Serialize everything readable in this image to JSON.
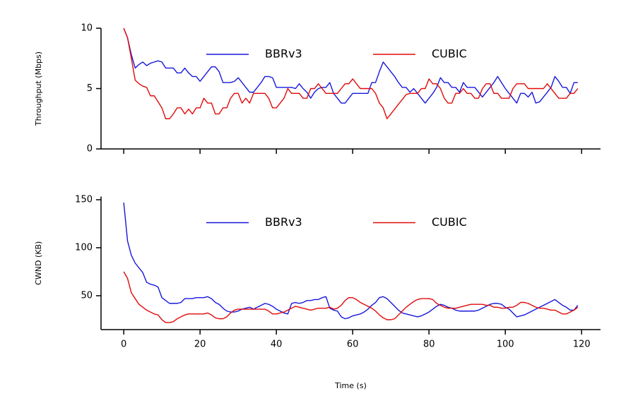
{
  "chart_data": [
    {
      "type": "line",
      "ylabel": "Throughput (Mbps)",
      "legend": "upper center",
      "xlim": [
        -5.95,
        124.95
      ],
      "xticks": [
        0,
        20,
        40,
        60,
        80,
        100,
        120
      ],
      "ylim": [
        0,
        10
      ],
      "yticks": [
        0,
        5,
        10
      ],
      "x": [
        0,
        1,
        2,
        3,
        4,
        5,
        6,
        7,
        8,
        9,
        10,
        11,
        12,
        13,
        14,
        15,
        16,
        17,
        18,
        19,
        20,
        21,
        22,
        23,
        24,
        25,
        26,
        27,
        28,
        29,
        30,
        31,
        32,
        33,
        34,
        35,
        36,
        37,
        38,
        39,
        40,
        41,
        42,
        43,
        44,
        45,
        46,
        47,
        48,
        49,
        50,
        51,
        52,
        53,
        54,
        55,
        56,
        57,
        58,
        59,
        60,
        61,
        62,
        63,
        64,
        65,
        66,
        67,
        68,
        69,
        70,
        71,
        72,
        73,
        74,
        75,
        76,
        77,
        78,
        79,
        80,
        81,
        82,
        83,
        84,
        85,
        86,
        87,
        88,
        89,
        90,
        91,
        92,
        93,
        94,
        95,
        96,
        97,
        98,
        99,
        100,
        101,
        102,
        103,
        104,
        105,
        106,
        107,
        108,
        109,
        110,
        111,
        112,
        113,
        114,
        115,
        116,
        117,
        118,
        119
      ],
      "series": [
        {
          "name": "BBRv3",
          "color": "#1717dd",
          "values": [
            10,
            9.2,
            7.8,
            6.7,
            7.0,
            7.2,
            6.9,
            7.1,
            7.2,
            7.3,
            7.2,
            6.7,
            6.7,
            6.7,
            6.3,
            6.3,
            6.7,
            6.3,
            6.0,
            6.0,
            5.6,
            6.0,
            6.4,
            6.8,
            6.8,
            6.4,
            5.5,
            5.5,
            5.5,
            5.6,
            5.9,
            5.5,
            5.1,
            4.7,
            4.7,
            5.1,
            5.5,
            6.0,
            6.0,
            5.9,
            5.1,
            5.1,
            5.1,
            5.1,
            5.1,
            5.0,
            5.4,
            5.0,
            4.7,
            4.2,
            4.7,
            5.0,
            5.1,
            5.1,
            5.5,
            4.6,
            4.2,
            3.8,
            3.8,
            4.2,
            4.6,
            4.6,
            4.6,
            4.6,
            4.6,
            5.5,
            5.5,
            6.4,
            7.2,
            6.8,
            6.4,
            6.0,
            5.5,
            5.1,
            5.1,
            4.7,
            5.0,
            4.6,
            4.2,
            3.8,
            4.2,
            4.6,
            5.1,
            5.9,
            5.5,
            5.5,
            5.1,
            5.1,
            4.7,
            5.5,
            5.1,
            5.1,
            5.1,
            4.7,
            4.3,
            4.7,
            5.1,
            5.5,
            6.0,
            5.5,
            5.0,
            4.6,
            4.2,
            3.8,
            4.6,
            4.6,
            4.3,
            4.7,
            3.8,
            3.9,
            4.3,
            4.7,
            5.1,
            6.0,
            5.6,
            5.1,
            5.1,
            4.6,
            5.5,
            5.5
          ]
        },
        {
          "name": "CUBIC",
          "color": "#e00a0a",
          "values": [
            10,
            9.2,
            7.5,
            5.7,
            5.4,
            5.2,
            5.1,
            4.4,
            4.4,
            3.9,
            3.4,
            2.5,
            2.5,
            2.9,
            3.4,
            3.4,
            2.9,
            3.3,
            2.9,
            3.4,
            3.4,
            4.2,
            3.8,
            3.8,
            2.9,
            2.9,
            3.4,
            3.4,
            4.2,
            4.6,
            4.6,
            3.8,
            4.2,
            3.8,
            4.6,
            4.6,
            4.6,
            4.6,
            4.2,
            3.4,
            3.4,
            3.8,
            4.2,
            5.0,
            4.6,
            4.6,
            4.6,
            4.2,
            4.2,
            5.0,
            5.0,
            5.4,
            5.0,
            4.6,
            4.6,
            4.6,
            4.6,
            5.0,
            5.4,
            5.4,
            5.8,
            5.4,
            5.0,
            5.0,
            5.0,
            5.0,
            4.6,
            3.8,
            3.4,
            2.5,
            2.9,
            3.3,
            3.7,
            4.1,
            4.5,
            4.6,
            4.6,
            4.6,
            5.0,
            5.0,
            5.8,
            5.4,
            5.4,
            5.0,
            4.2,
            3.8,
            3.8,
            4.6,
            4.6,
            5.0,
            4.6,
            4.6,
            4.2,
            4.2,
            5.0,
            5.4,
            5.4,
            4.6,
            4.6,
            4.2,
            4.2,
            4.2,
            5.0,
            5.4,
            5.4,
            5.4,
            5.0,
            5.0,
            5.0,
            5.0,
            5.0,
            5.4,
            5.0,
            4.6,
            4.2,
            4.2,
            4.2,
            4.6,
            4.6,
            5.0
          ]
        }
      ]
    },
    {
      "type": "line",
      "xlabel": "Time (s)",
      "ylabel": "CWND (KB)",
      "legend": "upper center",
      "xlim": [
        -5.95,
        124.95
      ],
      "xticks": [
        0,
        20,
        40,
        60,
        80,
        100,
        120
      ],
      "ylim": [
        14.7,
        153.3
      ],
      "yticks": [
        50,
        100,
        150
      ],
      "x": [
        0,
        1,
        2,
        3,
        4,
        5,
        6,
        7,
        8,
        9,
        10,
        11,
        12,
        13,
        14,
        15,
        16,
        17,
        18,
        19,
        20,
        21,
        22,
        23,
        24,
        25,
        26,
        27,
        28,
        29,
        30,
        31,
        32,
        33,
        34,
        35,
        36,
        37,
        38,
        39,
        40,
        41,
        42,
        43,
        44,
        45,
        46,
        47,
        48,
        49,
        50,
        51,
        52,
        53,
        54,
        55,
        56,
        57,
        58,
        59,
        60,
        61,
        62,
        63,
        64,
        65,
        66,
        67,
        68,
        69,
        70,
        71,
        72,
        73,
        74,
        75,
        76,
        77,
        78,
        79,
        80,
        81,
        82,
        83,
        84,
        85,
        86,
        87,
        88,
        89,
        90,
        91,
        92,
        93,
        94,
        95,
        96,
        97,
        98,
        99,
        100,
        101,
        102,
        103,
        104,
        105,
        106,
        107,
        108,
        109,
        110,
        111,
        112,
        113,
        114,
        115,
        116,
        117,
        118,
        119
      ],
      "series": [
        {
          "name": "BBRv3",
          "color": "#1717dd",
          "values": [
            147,
            107,
            92,
            84,
            79,
            74,
            64,
            62,
            61,
            59,
            48,
            45,
            42,
            42,
            42,
            43,
            47,
            47,
            47,
            48,
            48,
            48,
            49,
            47,
            43,
            41,
            37,
            34,
            33,
            33,
            34,
            36,
            37,
            38,
            36,
            38,
            40,
            42,
            41,
            39,
            36,
            34,
            32,
            31,
            42,
            43,
            42,
            43,
            45,
            45,
            46,
            46,
            48,
            49,
            37,
            35,
            34,
            28,
            26,
            27,
            29,
            30,
            31,
            33,
            36,
            40,
            43,
            48,
            49,
            47,
            43,
            39,
            35,
            32,
            31,
            30,
            29,
            28,
            29,
            31,
            33,
            36,
            39,
            41,
            40,
            38,
            37,
            35,
            34,
            34,
            34,
            34,
            34,
            35,
            37,
            39,
            41,
            42,
            42,
            41,
            38,
            36,
            32,
            28,
            29,
            30,
            32,
            34,
            36,
            38,
            40,
            42,
            44,
            46,
            43,
            40,
            38,
            35,
            35,
            40
          ]
        },
        {
          "name": "CUBIC",
          "color": "#e00a0a",
          "values": [
            75,
            68,
            53,
            47,
            41,
            38,
            35,
            33,
            31,
            30,
            25,
            22,
            22,
            23,
            26,
            28,
            30,
            31,
            31,
            31,
            31,
            31,
            32,
            30,
            27,
            26,
            26,
            28,
            32,
            35,
            36,
            36,
            36,
            36,
            36,
            36,
            36,
            36,
            34,
            31,
            31,
            32,
            33,
            35,
            37,
            39,
            38,
            37,
            36,
            35,
            36,
            37,
            37,
            37,
            38,
            36,
            37,
            40,
            45,
            48,
            48,
            46,
            43,
            41,
            39,
            37,
            34,
            30,
            27,
            25,
            25,
            26,
            30,
            34,
            38,
            41,
            44,
            46,
            47,
            47,
            47,
            46,
            42,
            40,
            38,
            37,
            37,
            37,
            38,
            39,
            40,
            41,
            41,
            41,
            41,
            40,
            40,
            38,
            38,
            37,
            37,
            38,
            38,
            40,
            43,
            43,
            42,
            40,
            38,
            37,
            37,
            36,
            35,
            35,
            33,
            31,
            31,
            33,
            35,
            38
          ]
        }
      ]
    }
  ]
}
